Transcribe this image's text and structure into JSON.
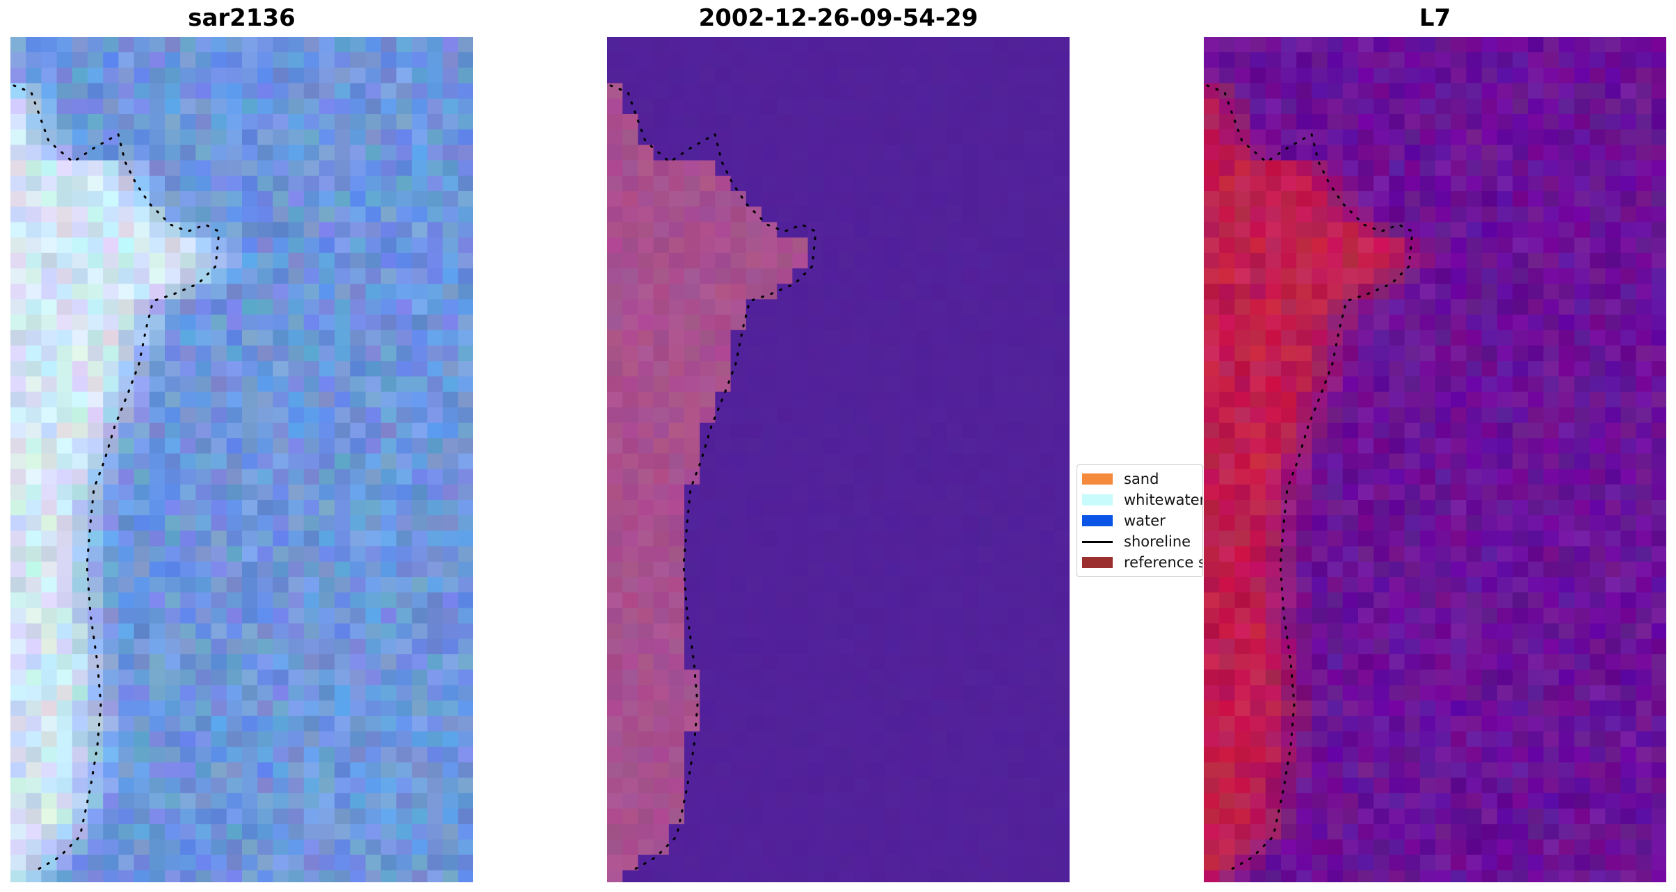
{
  "panels": [
    {
      "title": "sar2136",
      "kind": "rgb"
    },
    {
      "title": "2002-12-26-09-54-29",
      "kind": "classified"
    },
    {
      "title": "L7",
      "kind": "index"
    }
  ],
  "legend": {
    "items": [
      {
        "label": "sand",
        "color": "#f58a3c",
        "type": "patch"
      },
      {
        "label": "whitewater",
        "color": "#c8fbfb",
        "type": "patch"
      },
      {
        "label": "water",
        "color": "#0a55e6",
        "type": "patch"
      },
      {
        "label": "shoreline",
        "color": "#000000",
        "type": "line"
      },
      {
        "label": "reference s",
        "color": "#9b2f2f",
        "type": "patch"
      }
    ]
  },
  "colors": {
    "rgb_water": "#6e96dc",
    "rgb_sand": "#d2e6f5",
    "classified_water": "#52219a",
    "classified_land": "#a8508e",
    "index_water": "#6a1298",
    "index_land": "#c01e4e"
  }
}
